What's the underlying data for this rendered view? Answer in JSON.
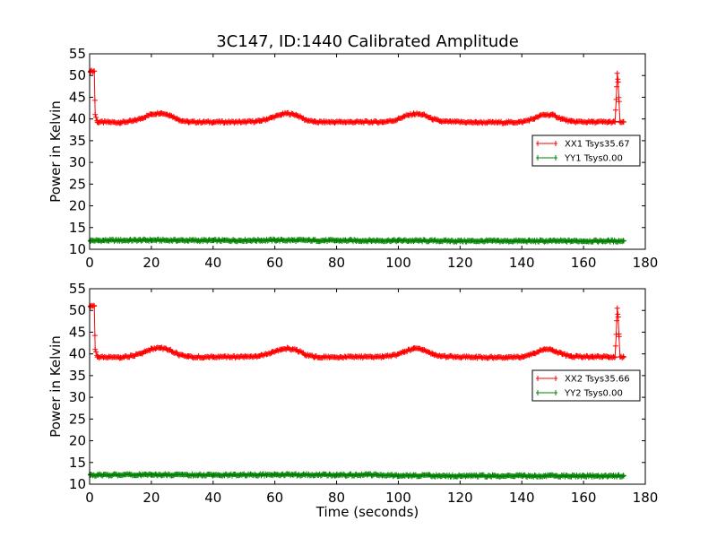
{
  "title": "3C147, ID:1440 Calibrated Amplitude",
  "xlabel": "Time (seconds)",
  "chart_data": [
    {
      "type": "line",
      "ylabel": "Power in Kelvin",
      "xlim": [
        0,
        180
      ],
      "ylim": [
        10,
        55
      ],
      "xticks": [
        0,
        20,
        40,
        60,
        80,
        100,
        120,
        140,
        160,
        180
      ],
      "yticks": [
        10,
        15,
        20,
        25,
        30,
        35,
        40,
        45,
        50,
        55
      ],
      "grid": false,
      "legend_position": "right",
      "series": [
        {
          "name": "XX1 Tsys35.67",
          "color": "#ff0000",
          "points": [
            [
              0.3,
              51
            ],
            [
              1.5,
              51
            ],
            [
              1.8,
              41
            ],
            [
              2.5,
              39.3
            ],
            [
              10,
              39.2
            ],
            [
              14,
              39.5
            ],
            [
              17,
              40.2
            ],
            [
              20,
              41.1
            ],
            [
              23,
              41.4
            ],
            [
              26,
              40.9
            ],
            [
              29,
              39.8
            ],
            [
              32,
              39.3
            ],
            [
              40,
              39.3
            ],
            [
              50,
              39.3
            ],
            [
              55,
              39.5
            ],
            [
              59,
              40.3
            ],
            [
              62,
              41.0
            ],
            [
              64,
              41.3
            ],
            [
              67,
              40.9
            ],
            [
              70,
              39.8
            ],
            [
              73,
              39.3
            ],
            [
              85,
              39.3
            ],
            [
              95,
              39.3
            ],
            [
              99,
              39.7
            ],
            [
              102,
              40.6
            ],
            [
              105,
              41.2
            ],
            [
              108,
              41.0
            ],
            [
              111,
              40.0
            ],
            [
              114,
              39.4
            ],
            [
              125,
              39.2
            ],
            [
              135,
              39.2
            ],
            [
              140,
              39.3
            ],
            [
              144,
              40.1
            ],
            [
              147,
              41.0
            ],
            [
              150,
              40.9
            ],
            [
              153,
              40.0
            ],
            [
              156,
              39.4
            ],
            [
              163,
              39.3
            ],
            [
              168,
              39.3
            ],
            [
              170.2,
              39.3
            ],
            [
              170.6,
              44.5
            ],
            [
              170.9,
              50.5
            ],
            [
              171.2,
              48.5
            ],
            [
              171.5,
              44
            ],
            [
              171.8,
              39.3
            ],
            [
              173,
              39.3
            ]
          ]
        },
        {
          "name": "YY1 Tsys0.00",
          "color": "#008000",
          "points": [
            [
              0.3,
              12
            ],
            [
              20,
              12.1
            ],
            [
              40,
              12
            ],
            [
              60,
              12.1
            ],
            [
              80,
              12
            ],
            [
              100,
              12
            ],
            [
              120,
              11.9
            ],
            [
              140,
              11.9
            ],
            [
              160,
              11.9
            ],
            [
              173,
              11.9
            ]
          ]
        }
      ]
    },
    {
      "type": "line",
      "ylabel": "Power in Kelvin",
      "xlim": [
        0,
        180
      ],
      "ylim": [
        10,
        55
      ],
      "xticks": [
        0,
        20,
        40,
        60,
        80,
        100,
        120,
        140,
        160,
        180
      ],
      "yticks": [
        10,
        15,
        20,
        25,
        30,
        35,
        40,
        45,
        50,
        55
      ],
      "grid": false,
      "legend_position": "right",
      "series": [
        {
          "name": "XX2 Tsys35.66",
          "color": "#ff0000",
          "points": [
            [
              0.3,
              51
            ],
            [
              1.5,
              51
            ],
            [
              1.8,
              41
            ],
            [
              2.5,
              39.3
            ],
            [
              10,
              39.2
            ],
            [
              14,
              39.5
            ],
            [
              17,
              40.2
            ],
            [
              20,
              41.1
            ],
            [
              23,
              41.4
            ],
            [
              26,
              40.9
            ],
            [
              29,
              39.8
            ],
            [
              32,
              39.3
            ],
            [
              40,
              39.3
            ],
            [
              50,
              39.3
            ],
            [
              55,
              39.5
            ],
            [
              59,
              40.3
            ],
            [
              62,
              41.0
            ],
            [
              64,
              41.3
            ],
            [
              67,
              40.9
            ],
            [
              70,
              39.8
            ],
            [
              73,
              39.3
            ],
            [
              85,
              39.3
            ],
            [
              95,
              39.3
            ],
            [
              99,
              39.7
            ],
            [
              102,
              40.6
            ],
            [
              105,
              41.2
            ],
            [
              108,
              41.0
            ],
            [
              111,
              40.0
            ],
            [
              114,
              39.4
            ],
            [
              125,
              39.2
            ],
            [
              135,
              39.2
            ],
            [
              140,
              39.3
            ],
            [
              144,
              40.1
            ],
            [
              147,
              41.0
            ],
            [
              150,
              40.9
            ],
            [
              153,
              40.0
            ],
            [
              156,
              39.4
            ],
            [
              163,
              39.3
            ],
            [
              168,
              39.3
            ],
            [
              170.2,
              39.3
            ],
            [
              170.6,
              44.5
            ],
            [
              170.9,
              50.5
            ],
            [
              171.2,
              48.5
            ],
            [
              171.5,
              44
            ],
            [
              171.8,
              39.3
            ],
            [
              173,
              39.3
            ]
          ]
        },
        {
          "name": "YY2 Tsys0.00",
          "color": "#008000",
          "points": [
            [
              0.3,
              12.1
            ],
            [
              20,
              12.2
            ],
            [
              40,
              12.1
            ],
            [
              60,
              12.2
            ],
            [
              80,
              12.1
            ],
            [
              90,
              12.2
            ],
            [
              100,
              12
            ],
            [
              120,
              11.9
            ],
            [
              140,
              11.9
            ],
            [
              160,
              11.9
            ],
            [
              173,
              11.9
            ]
          ]
        }
      ]
    }
  ]
}
